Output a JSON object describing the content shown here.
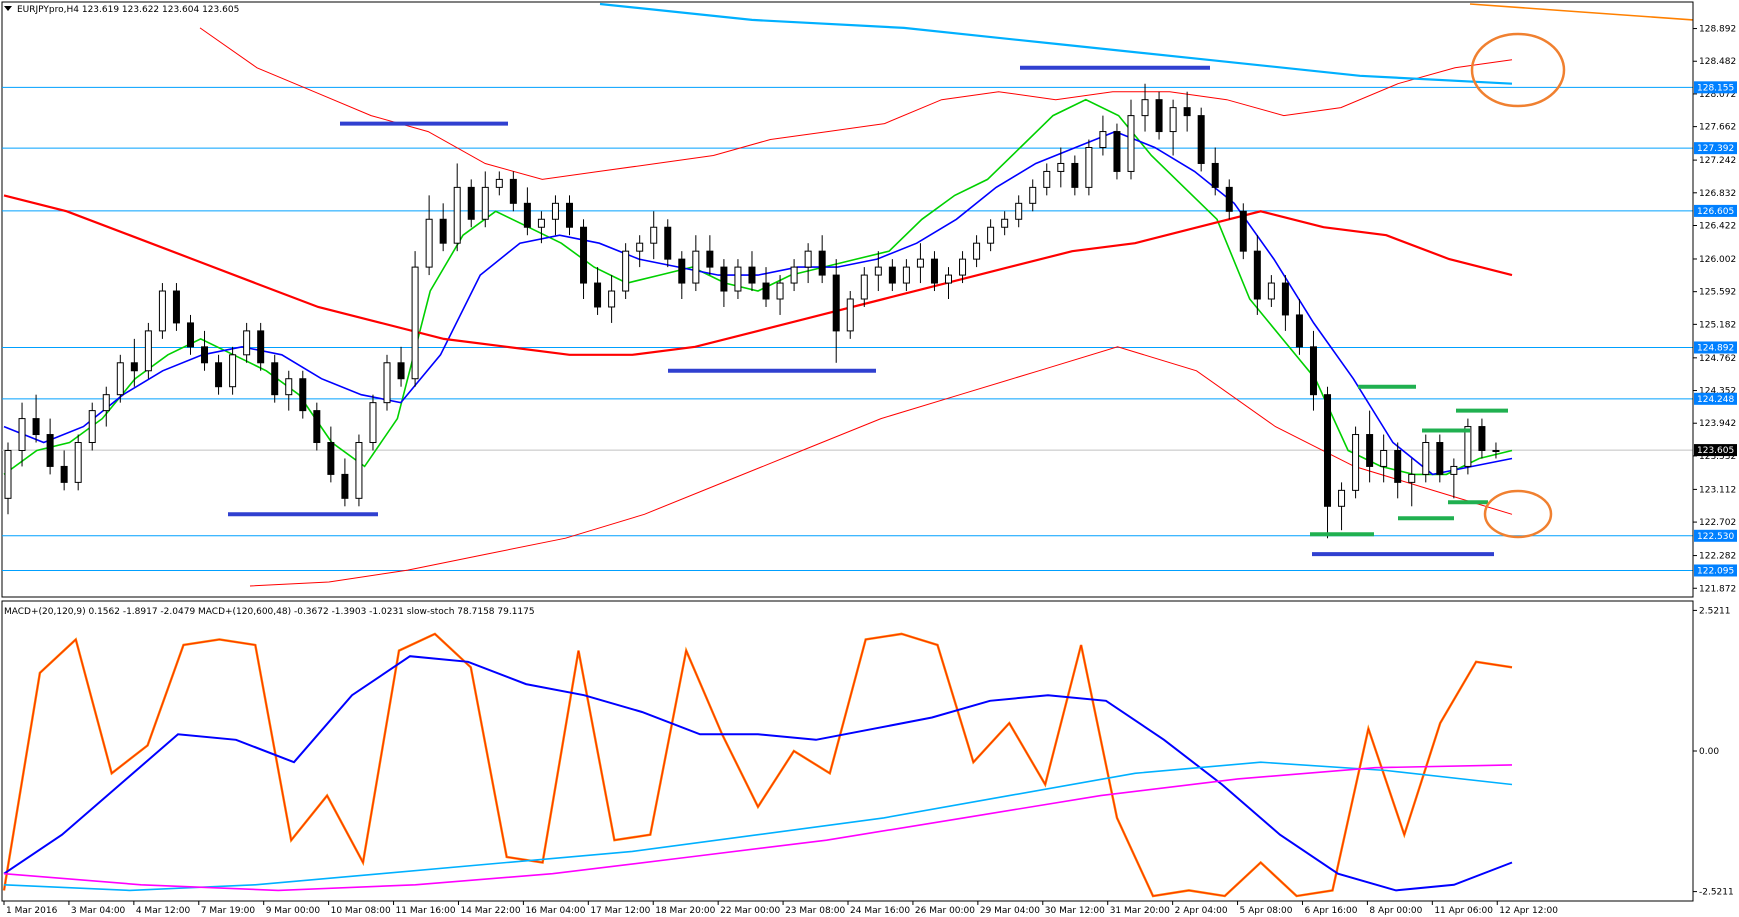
{
  "chart_data": {
    "type": "candlestick",
    "title": "EURJPYpro,H4  123.619 123.622 123.604 123.605",
    "current_price": "123.605",
    "price_axis": {
      "range": [
        121.8,
        129.2
      ],
      "ticks": [
        "128.892",
        "128.482",
        "128.072",
        "127.662",
        "127.242",
        "126.832",
        "126.422",
        "126.002",
        "125.592",
        "125.182",
        "124.762",
        "124.352",
        "123.942",
        "123.532",
        "123.112",
        "122.702",
        "122.282",
        "121.872"
      ]
    },
    "level_lines": [
      {
        "value": 128.155,
        "label": "128.155"
      },
      {
        "value": 127.392,
        "label": "127.392"
      },
      {
        "value": 126.605,
        "label": "126.605"
      },
      {
        "value": 124.892,
        "label": "124.892"
      },
      {
        "value": 124.248,
        "label": "124.248"
      },
      {
        "value": 122.53,
        "label": "122.530"
      },
      {
        "value": 122.095,
        "label": "122.095"
      }
    ],
    "time_labels": [
      "1 Mar 2016",
      "3 Mar 04:00",
      "4 Mar 12:00",
      "7 Mar 19:00",
      "9 Mar 00:00",
      "10 Mar 08:00",
      "11 Mar 16:00",
      "14 Mar 22:00",
      "16 Mar 04:00",
      "17 Mar 12:00",
      "18 Mar 20:00",
      "22 Mar 00:00",
      "23 Mar 08:00",
      "24 Mar 16:00",
      "26 Mar 00:00",
      "29 Mar 04:00",
      "30 Mar 12:00",
      "31 Mar 20:00",
      "2 Apr 04:00",
      "5 Apr 08:00",
      "6 Apr 16:00",
      "8 Apr 00:00",
      "11 Apr 06:00",
      "12 Apr 12:00"
    ],
    "candles_ohlc": [
      [
        123.0,
        123.7,
        122.8,
        123.6
      ],
      [
        123.6,
        124.2,
        123.4,
        124.0
      ],
      [
        124.0,
        124.3,
        123.7,
        123.8
      ],
      [
        123.8,
        124.0,
        123.3,
        123.4
      ],
      [
        123.4,
        123.6,
        123.1,
        123.2
      ],
      [
        123.2,
        123.8,
        123.1,
        123.7
      ],
      [
        123.7,
        124.2,
        123.6,
        124.1
      ],
      [
        124.1,
        124.4,
        123.9,
        124.3
      ],
      [
        124.3,
        124.8,
        124.2,
        124.7
      ],
      [
        124.7,
        125.0,
        124.4,
        124.6
      ],
      [
        124.6,
        125.2,
        124.5,
        125.1
      ],
      [
        125.1,
        125.7,
        125.0,
        125.6
      ],
      [
        125.6,
        125.7,
        125.1,
        125.2
      ],
      [
        125.2,
        125.3,
        124.8,
        124.9
      ],
      [
        124.9,
        125.1,
        124.6,
        124.7
      ],
      [
        124.7,
        124.8,
        124.3,
        124.4
      ],
      [
        124.4,
        124.9,
        124.3,
        124.8
      ],
      [
        124.8,
        125.2,
        124.7,
        125.1
      ],
      [
        125.1,
        125.2,
        124.6,
        124.7
      ],
      [
        124.7,
        124.8,
        124.2,
        124.3
      ],
      [
        124.3,
        124.6,
        124.1,
        124.5
      ],
      [
        124.5,
        124.6,
        124.0,
        124.1
      ],
      [
        124.1,
        124.2,
        123.6,
        123.7
      ],
      [
        123.7,
        123.9,
        123.2,
        123.3
      ],
      [
        123.3,
        123.5,
        122.9,
        123.0
      ],
      [
        123.0,
        123.8,
        122.9,
        123.7
      ],
      [
        123.7,
        124.3,
        123.6,
        124.2
      ],
      [
        124.2,
        124.8,
        124.1,
        124.7
      ],
      [
        124.7,
        124.9,
        124.4,
        124.5
      ],
      [
        124.5,
        126.1,
        124.4,
        125.9
      ],
      [
        125.9,
        126.8,
        125.8,
        126.5
      ],
      [
        126.5,
        126.7,
        126.1,
        126.2
      ],
      [
        126.2,
        127.2,
        126.1,
        126.9
      ],
      [
        126.9,
        127.0,
        126.4,
        126.5
      ],
      [
        126.5,
        127.1,
        126.4,
        126.9
      ],
      [
        126.9,
        127.1,
        126.8,
        127.0
      ],
      [
        127.0,
        127.1,
        126.6,
        126.7
      ],
      [
        126.7,
        126.9,
        126.3,
        126.4
      ],
      [
        126.4,
        126.6,
        126.2,
        126.5
      ],
      [
        126.5,
        126.8,
        126.3,
        126.7
      ],
      [
        126.7,
        126.8,
        126.3,
        126.4
      ],
      [
        126.4,
        126.5,
        125.5,
        125.7
      ],
      [
        125.7,
        125.9,
        125.3,
        125.4
      ],
      [
        125.4,
        125.8,
        125.2,
        125.6
      ],
      [
        125.6,
        126.2,
        125.5,
        126.1
      ],
      [
        126.1,
        126.3,
        125.9,
        126.2
      ],
      [
        126.2,
        126.6,
        126.0,
        126.4
      ],
      [
        126.4,
        126.5,
        125.9,
        126.0
      ],
      [
        126.0,
        126.1,
        125.5,
        125.7
      ],
      [
        125.7,
        126.3,
        125.6,
        126.1
      ],
      [
        126.1,
        126.3,
        125.8,
        125.9
      ],
      [
        125.9,
        126.0,
        125.4,
        125.6
      ],
      [
        125.6,
        126.0,
        125.5,
        125.9
      ],
      [
        125.9,
        126.1,
        125.6,
        125.7
      ],
      [
        125.7,
        125.9,
        125.4,
        125.5
      ],
      [
        125.5,
        125.8,
        125.3,
        125.7
      ],
      [
        125.7,
        126.0,
        125.6,
        125.9
      ],
      [
        125.9,
        126.2,
        125.7,
        126.1
      ],
      [
        126.1,
        126.3,
        125.7,
        125.8
      ],
      [
        125.8,
        126.0,
        124.7,
        125.1
      ],
      [
        125.1,
        125.6,
        125.0,
        125.5
      ],
      [
        125.5,
        125.9,
        125.4,
        125.8
      ],
      [
        125.8,
        126.1,
        125.6,
        125.9
      ],
      [
        125.9,
        126.0,
        125.6,
        125.7
      ],
      [
        125.7,
        126.0,
        125.6,
        125.9
      ],
      [
        125.9,
        126.2,
        125.7,
        126.0
      ],
      [
        126.0,
        126.1,
        125.6,
        125.7
      ],
      [
        125.7,
        125.9,
        125.5,
        125.8
      ],
      [
        125.8,
        126.1,
        125.7,
        126.0
      ],
      [
        126.0,
        126.3,
        125.9,
        126.2
      ],
      [
        126.2,
        126.5,
        126.1,
        126.4
      ],
      [
        126.4,
        126.6,
        126.3,
        126.5
      ],
      [
        126.5,
        126.8,
        126.4,
        126.7
      ],
      [
        126.7,
        127.0,
        126.6,
        126.9
      ],
      [
        126.9,
        127.2,
        126.8,
        127.1
      ],
      [
        127.1,
        127.4,
        126.9,
        127.2
      ],
      [
        127.2,
        127.3,
        126.8,
        126.9
      ],
      [
        126.9,
        127.5,
        126.8,
        127.4
      ],
      [
        127.4,
        127.8,
        127.3,
        127.6
      ],
      [
        127.6,
        127.7,
        127.0,
        127.1
      ],
      [
        127.1,
        128.0,
        127.0,
        127.8
      ],
      [
        127.8,
        128.2,
        127.6,
        128.0
      ],
      [
        128.0,
        128.1,
        127.5,
        127.6
      ],
      [
        127.6,
        128.0,
        127.3,
        127.9
      ],
      [
        127.9,
        128.1,
        127.6,
        127.8
      ],
      [
        127.8,
        127.9,
        127.1,
        127.2
      ],
      [
        127.2,
        127.4,
        126.8,
        126.9
      ],
      [
        126.9,
        127.0,
        126.5,
        126.6
      ],
      [
        126.6,
        126.7,
        126.0,
        126.1
      ],
      [
        126.1,
        126.3,
        125.3,
        125.5
      ],
      [
        125.5,
        125.8,
        125.4,
        125.7
      ],
      [
        125.7,
        125.8,
        125.1,
        125.3
      ],
      [
        125.3,
        125.5,
        124.8,
        124.9
      ],
      [
        124.9,
        125.1,
        124.1,
        124.3
      ],
      [
        124.3,
        124.4,
        122.5,
        122.9
      ],
      [
        122.9,
        123.2,
        122.6,
        123.1
      ],
      [
        123.1,
        123.9,
        123.0,
        123.8
      ],
      [
        123.8,
        124.1,
        123.2,
        123.4
      ],
      [
        123.4,
        123.8,
        123.2,
        123.6
      ],
      [
        123.6,
        123.7,
        123.0,
        123.2
      ],
      [
        123.2,
        123.5,
        122.9,
        123.3
      ],
      [
        123.3,
        123.8,
        123.2,
        123.7
      ],
      [
        123.7,
        123.8,
        123.2,
        123.3
      ],
      [
        123.3,
        123.5,
        123.0,
        123.4
      ],
      [
        123.4,
        124.0,
        123.3,
        123.9
      ],
      [
        123.9,
        124.0,
        123.5,
        123.6
      ],
      [
        123.6,
        123.7,
        123.5,
        123.6
      ]
    ],
    "drawn_objects": {
      "blue_segments": [
        [
          122.8,
          "9 Mar"
        ],
        [
          127.7,
          "11 Mar"
        ],
        [
          124.6,
          "22 Mar"
        ],
        [
          128.4,
          "31 Mar"
        ],
        [
          122.3,
          "11 Apr"
        ]
      ],
      "green_segments": 6,
      "orange_ellipses": 2
    },
    "indicator_label": "MACD+(20,120,9) 0.1562 -1.8917 -2.0479  MACD+(120,600,48) -0.3672 -1.3903 -1.0231  slow-stoch 78.7158 79.1175",
    "indicator_axis": {
      "ticks": [
        "2.5211",
        "0.00",
        "-2.5211"
      ],
      "range": [
        -2.6,
        2.6
      ]
    },
    "series": [
      {
        "color": "#00d000",
        "values": [
          123.3,
          123.6,
          123.7,
          124.0,
          124.5,
          124.8,
          125.0,
          124.8,
          124.6,
          124.3,
          123.7,
          123.4,
          124.0,
          125.6,
          126.3,
          126.6,
          126.4,
          126.2,
          125.9,
          125.7,
          125.8,
          125.9,
          125.7,
          125.6,
          125.8,
          125.9,
          126.0,
          126.1,
          126.5,
          126.8,
          127.0,
          127.4,
          127.8,
          128.0,
          127.8,
          127.3,
          126.9,
          126.5,
          125.5,
          125.0,
          124.5,
          123.6,
          123.4,
          123.3,
          123.3,
          123.5,
          123.6
        ]
      },
      {
        "color": "#0000ff",
        "values": [
          123.9,
          123.7,
          123.9,
          124.3,
          124.6,
          124.8,
          124.9,
          124.8,
          124.5,
          124.3,
          124.2,
          124.8,
          125.8,
          126.2,
          126.3,
          126.2,
          126.0,
          125.9,
          125.8,
          125.8,
          125.9,
          125.9,
          126.0,
          126.2,
          126.5,
          126.9,
          127.2,
          127.4,
          127.6,
          127.4,
          127.1,
          126.7,
          126.0,
          125.2,
          124.5,
          123.7,
          123.3,
          123.4,
          123.5
        ]
      },
      {
        "color": "#ff0000",
        "values": [
          126.8,
          126.6,
          126.3,
          126.0,
          125.7,
          125.4,
          125.2,
          125.0,
          124.9,
          124.8,
          124.8,
          124.9,
          125.1,
          125.3,
          125.5,
          125.7,
          125.9,
          126.1,
          126.2,
          126.4,
          126.6,
          126.4,
          126.3,
          126.0,
          125.8
        ]
      },
      {
        "color": "#ff0000",
        "values": [
          128.9,
          128.4,
          128.1,
          127.8,
          127.6,
          127.2,
          127.0,
          127.1,
          127.2,
          127.3,
          127.5,
          127.6,
          127.7,
          128.0,
          128.1,
          128.0,
          128.1,
          128.1,
          128.0,
          127.8,
          127.9,
          128.2,
          128.4,
          128.5
        ]
      },
      {
        "color": "#ff0000",
        "values": [
          121.9,
          121.95,
          122.1,
          122.3,
          122.5,
          122.8,
          123.2,
          123.6,
          124.0,
          124.3,
          124.6,
          124.9,
          124.6,
          123.9,
          123.4,
          123.1,
          122.8
        ]
      },
      {
        "color": "#00b0ff",
        "values": [
          129.2,
          129.0,
          128.9,
          128.7,
          128.5,
          128.3,
          128.2
        ]
      },
      {
        "color": "#ff8000",
        "values": [
          129.2,
          129.1,
          129.0
        ]
      }
    ],
    "indicator_series": [
      {
        "color": "#ff8000",
        "values": [
          -2.5,
          1.4,
          2.0,
          -0.4,
          0.1,
          1.9,
          2.0,
          1.9,
          -1.6,
          -0.8,
          -2.0,
          1.8,
          2.1,
          1.5,
          -1.9,
          -2.0,
          1.8,
          -1.6,
          -1.5,
          1.8,
          0.3,
          -1.0,
          0.0,
          -0.4,
          2.0,
          2.1,
          1.9,
          -0.2,
          0.5,
          -0.6,
          1.9,
          -1.2,
          -2.6,
          -2.5,
          -2.6,
          -2.0,
          -2.6,
          -2.5,
          0.4,
          -1.5,
          0.5,
          1.6,
          1.5
        ]
      },
      {
        "color": "#0000ff",
        "values": [
          -2.2,
          -1.5,
          -0.6,
          0.3,
          0.2,
          -0.2,
          1.0,
          1.7,
          1.6,
          1.2,
          1.0,
          0.7,
          0.3,
          0.3,
          0.2,
          0.4,
          0.6,
          0.9,
          1.0,
          0.9,
          0.2,
          -0.6,
          -1.5,
          -2.2,
          -2.5,
          -2.4,
          -2.0
        ]
      },
      {
        "color": "#00b0ff",
        "values": [
          -2.4,
          -2.5,
          -2.4,
          -2.2,
          -2.0,
          -1.8,
          -1.5,
          -1.2,
          -0.8,
          -0.4,
          -0.2,
          -0.35,
          -0.6
        ]
      },
      {
        "color": "#ff00ff",
        "values": [
          -2.2,
          -2.4,
          -2.5,
          -2.4,
          -2.2,
          -1.9,
          -1.6,
          -1.2,
          -0.8,
          -0.5,
          -0.3,
          -0.25
        ]
      }
    ]
  }
}
